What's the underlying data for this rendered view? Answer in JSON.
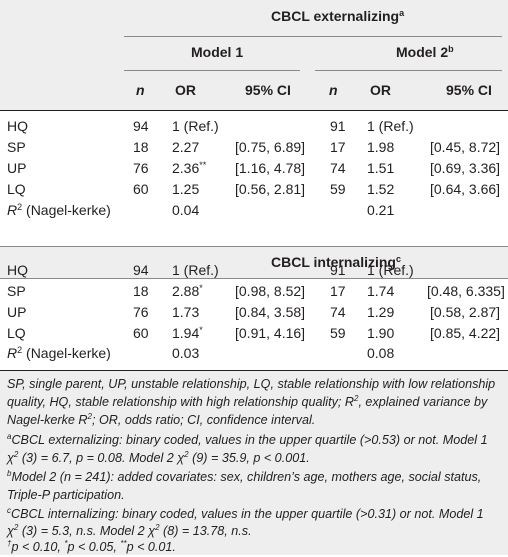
{
  "header": {
    "group_title": "CBCL externalizing",
    "group_sup": "a",
    "model1": "Model 1",
    "model1_sup": "",
    "model2": "Model 2",
    "model2_sup": "b",
    "col_n": "n",
    "col_or": "OR",
    "col_ci": "95% CI"
  },
  "externalizing": [
    {
      "label": "HQ",
      "n1": "94",
      "or1": "1 (Ref.)",
      "or1_sup": "",
      "ci1": "",
      "n2": "91",
      "or2": "1 (Ref.)",
      "ci2": ""
    },
    {
      "label": "SP",
      "n1": "18",
      "or1": "2.27",
      "or1_sup": "",
      "ci1": "[0.75, 6.89]",
      "n2": "17",
      "or2": "1.98",
      "ci2": "[0.45, 8.72]"
    },
    {
      "label": "UP",
      "n1": "76",
      "or1": "2.36",
      "or1_sup": "**",
      "ci1": "[1.16, 4.78]",
      "n2": "74",
      "or2": "1.51",
      "ci2": "[0.69, 3.36]"
    },
    {
      "label": "LQ",
      "n1": "60",
      "or1": "1.25",
      "or1_sup": "",
      "ci1": "[0.56, 2.81]",
      "n2": "59",
      "or2": "1.52",
      "ci2": "[0.64, 3.66]"
    }
  ],
  "externalizing_r2": {
    "label_sym": "R",
    "label_sup": "2",
    "label_rest": " (Nagel-kerke)",
    "m1": "0.04",
    "m2": "0.21"
  },
  "internalizing_title": "CBCL internalizing",
  "internalizing_sup": "c",
  "internalizing": [
    {
      "label": "HQ",
      "n1": "94",
      "or1": "1 (Ref.)",
      "or1_sup": "",
      "ci1": "",
      "n2": "91",
      "or2": "1 (Ref.)",
      "ci2": ""
    },
    {
      "label": "SP",
      "n1": "18",
      "or1": "2.88",
      "or1_sup": "*",
      "ci1": "[0.98, 8.52]",
      "n2": "17",
      "or2": "1.74",
      "ci2": "[0.48, 6.335]"
    },
    {
      "label": "UP",
      "n1": "76",
      "or1": "1.73",
      "or1_sup": "",
      "ci1": "[0.84, 3.58]",
      "n2": "74",
      "or2": "1.29",
      "ci2": "[0.58, 2.87]"
    },
    {
      "label": "LQ",
      "n1": "60",
      "or1": "1.94",
      "or1_sup": "*",
      "ci1": "[0.91, 4.16]",
      "n2": "59",
      "or2": "1.90",
      "ci2": "[0.85, 4.22]"
    }
  ],
  "internalizing_r2": {
    "label_sym": "R",
    "label_sup": "2",
    "label_rest": " (Nagel-kerke)",
    "m1": "0.03",
    "m2": "0.08"
  },
  "footnotes": {
    "abbr_1": "SP, single parent, UP, unstable relationship, LQ, stable relationship with low relationship",
    "abbr_2a": "quality, HQ, stable relationship with high relationship quality; R",
    "abbr_2sup": "2",
    "abbr_2b": ", explained variance by",
    "abbr_3a": "Nagel-kerke R",
    "abbr_3sup": "2",
    "abbr_3b": "; OR, odds ratio; CI, confidence interval.",
    "a_mark": "a",
    "a_1": "CBCL externalizing: binary coded, values in the upper quartile (>0.53) or not. Model 1",
    "a_2a": "χ",
    "a_2sup1": "2",
    "a_2b": " (3) = 6.7, p = 0.08. Model 2 χ",
    "a_2sup2": "2",
    "a_2c": " (9) = 35.9, p < 0.001.",
    "b_mark": "b",
    "b_1": "Model 2 (n = 241): added covariates: sex, children’s age, mothers age, social status,",
    "b_2": "Triple-P participation.",
    "c_mark": "c",
    "c_1": "CBCL internalizing: binary coded, values in the upper quartile (>0.31) or not. Model 1",
    "c_2a": "χ",
    "c_2sup1": "2",
    "c_2b": " (3) = 5.3, n.s. Model 2 χ",
    "c_2sup2": "2",
    "c_2c": " (8) = 13.78, n.s.",
    "p_mark1": "†",
    "p_1": "p < 0.10, ",
    "p_mark2": "*",
    "p_2": "p < 0.05, ",
    "p_mark3": "**",
    "p_3": "p < 0.01."
  }
}
